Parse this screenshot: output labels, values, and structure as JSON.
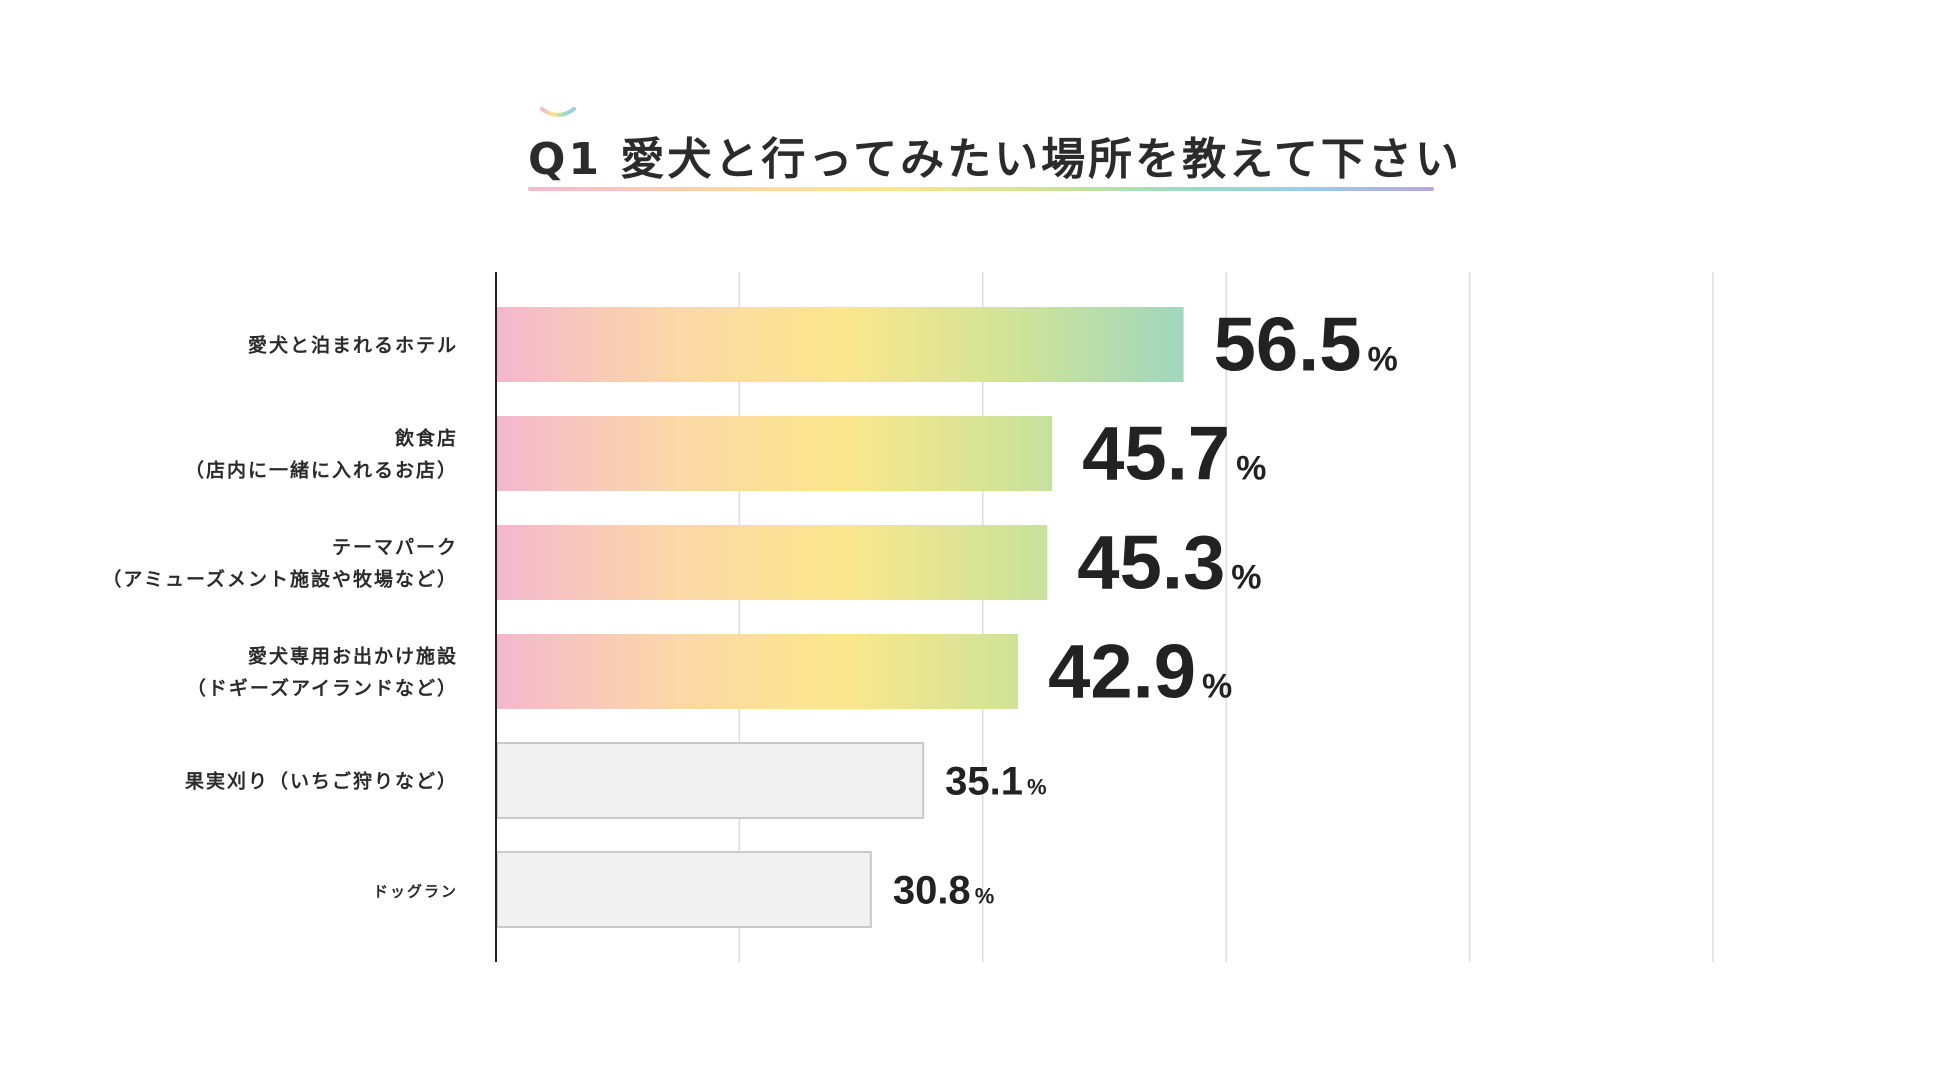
{
  "title": {
    "text": "Q1 愛犬と行ってみたい場所を教えて下さい"
  },
  "colors": {
    "gradient": [
      "#f4b7cf",
      "#fbd7a8",
      "#fbe68c",
      "#cfe398",
      "#9ed6c0"
    ],
    "plain_bar_fill": "#f1f1f1",
    "plain_bar_stroke": "#c9c9c9",
    "grid": "#dddddd",
    "axis": "#222222"
  },
  "chart_data": {
    "type": "bar",
    "orientation": "horizontal",
    "categories": [
      [
        "愛犬と泊まれるホテル"
      ],
      [
        "飲食店",
        "（店内に一緒に入れるお店）"
      ],
      [
        "テーマパーク",
        "（アミューズメント施設や牧場など）"
      ],
      [
        "愛犬専用お出かけ施設",
        "（ドギーズアイランドなど）"
      ],
      [
        "果実刈り（いちご狩りなど）"
      ],
      [
        "ドッグラン"
      ]
    ],
    "values": [
      56.5,
      45.7,
      45.3,
      42.9,
      35.1,
      30.8
    ],
    "value_labels": [
      "56.5",
      "45.7",
      "45.3",
      "42.9",
      "35.1",
      "30.8"
    ],
    "unit": "%",
    "highlighted": [
      true,
      true,
      true,
      true,
      false,
      false
    ],
    "xlim": [
      0,
      100
    ],
    "grid": true
  }
}
